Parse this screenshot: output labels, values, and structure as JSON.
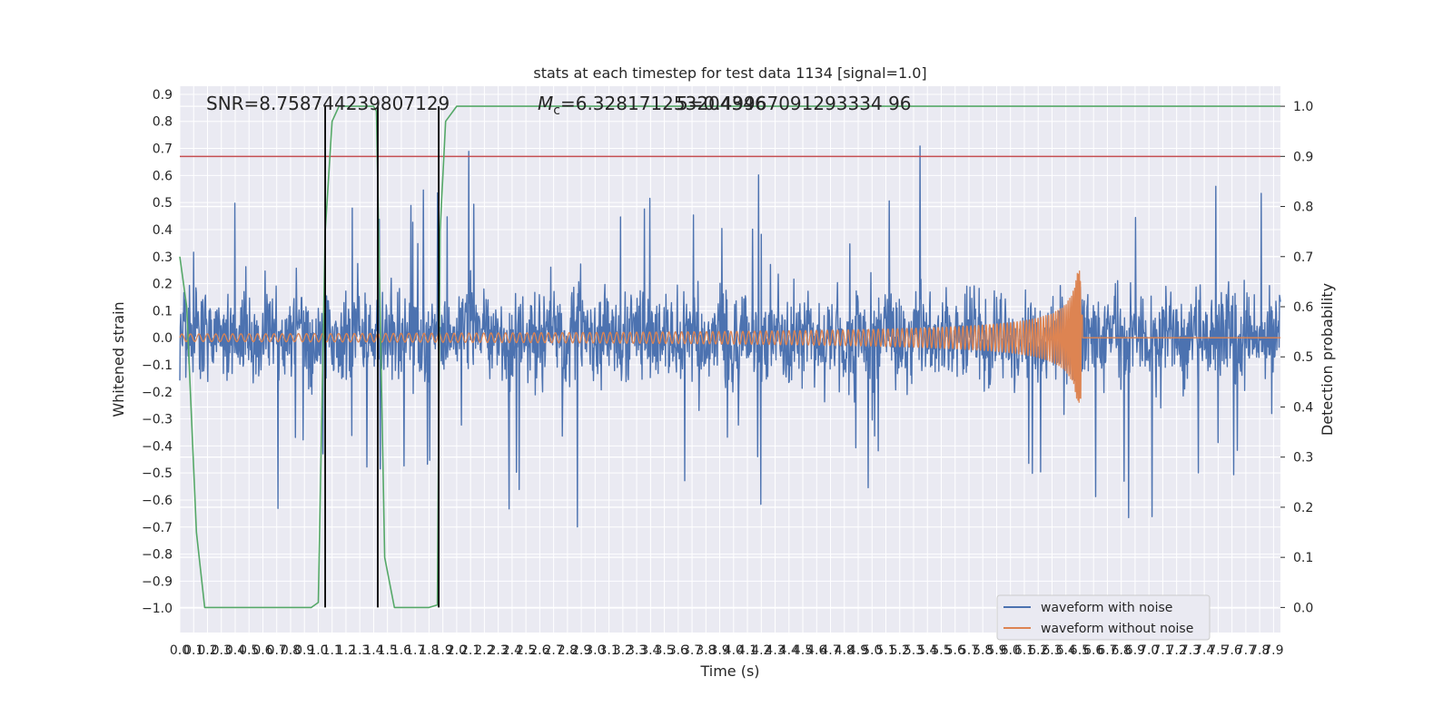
{
  "chart_data": {
    "type": "line",
    "title": "stats at each timestep for test data 1134 [signal=1.0]",
    "xlabel": "Time (s)",
    "ylabel": "Whitened strain",
    "y2label": "Detection probability",
    "xlim": [
      0.0,
      7.95
    ],
    "ylim": [
      -1.09,
      0.93
    ],
    "y2lim": [
      -0.05,
      1.04
    ],
    "x_ticks": [
      "0.0",
      "0.1",
      "0.2",
      "0.3",
      "0.4",
      "0.5",
      "0.6",
      "0.7",
      "0.8",
      "0.9",
      "1.0",
      "1.1",
      "1.2",
      "1.3",
      "1.4",
      "1.5",
      "1.6",
      "1.7",
      "1.8",
      "1.9",
      "2.0",
      "2.1",
      "2.2",
      "2.3",
      "2.4",
      "2.5",
      "2.6",
      "2.7",
      "2.8",
      "2.9",
      "3.0",
      "3.1",
      "3.2",
      "3.3",
      "3.4",
      "3.5",
      "3.6",
      "3.7",
      "3.8",
      "3.9",
      "4.0",
      "4.1",
      "4.2",
      "4.3",
      "4.4",
      "4.5",
      "4.6",
      "4.7",
      "4.8",
      "4.9",
      "5.0",
      "5.1",
      "5.2",
      "5.3",
      "5.4",
      "5.5",
      "5.6",
      "5.7",
      "5.8",
      "5.9",
      "6.0",
      "6.1",
      "6.2",
      "6.3",
      "6.4",
      "6.5",
      "6.6",
      "6.7",
      "6.8",
      "6.9",
      "7.0",
      "7.1",
      "7.2",
      "7.3",
      "7.4",
      "7.5",
      "7.6",
      "7.7",
      "7.8",
      "7.9"
    ],
    "y_ticks": [
      "0.9",
      "0.8",
      "0.7",
      "0.6",
      "0.5",
      "0.4",
      "0.3",
      "0.2",
      "0.1",
      "0.0",
      "-0.1",
      "-0.2",
      "-0.3",
      "-0.4",
      "-0.5",
      "-0.6",
      "-0.7",
      "-0.8",
      "-0.9",
      "-1.0"
    ],
    "y2_ticks": [
      "1.0",
      "0.9",
      "0.8",
      "0.7",
      "0.6",
      "0.5",
      "0.4",
      "0.3",
      "0.2",
      "0.1",
      "0.0"
    ],
    "annotations": {
      "snr": "SNR=8.758744239807129",
      "mc_prefix": "M",
      "mc_sub": "c",
      "mc_value": "=6.328171253204346",
      "overlap_value": "5=0.49967091293334 96"
    },
    "threshold": 0.9,
    "vlines_x": [
      1.05,
      1.43,
      1.87
    ],
    "series": [
      {
        "name": "waveform with noise",
        "color": "#4c72b0",
        "envelope": {
          "upper": 0.3,
          "lower": -0.3,
          "peak_upper": 0.83,
          "peak_lower": -1.0
        }
      },
      {
        "name": "waveform without noise",
        "color": "#dd8452",
        "merger_time": 6.52,
        "amplitude_start": 0.014,
        "amplitude_merger": 0.25
      },
      {
        "name": "",
        "axis": "y2",
        "color": "#55a868",
        "x": [
          0.0,
          0.05,
          0.12,
          0.18,
          0.3,
          0.6,
          0.9,
          0.95,
          1.0,
          1.05,
          1.1,
          1.15,
          1.2,
          1.3,
          1.4,
          1.42,
          1.48,
          1.55,
          1.65,
          1.8,
          1.86,
          1.88,
          1.92,
          2.0,
          7.95
        ],
        "values": [
          0.7,
          0.6,
          0.15,
          0.0,
          0.0,
          0.0,
          0.0,
          0.0,
          0.01,
          0.75,
          0.97,
          1.0,
          1.0,
          1.0,
          1.0,
          0.99,
          0.1,
          0.0,
          0.0,
          0.0,
          0.005,
          0.75,
          0.97,
          1.0,
          1.0
        ]
      }
    ],
    "threshold_color": "#c44e52",
    "legend": {
      "placement": "lower-right",
      "entries": [
        "waveform with noise",
        "waveform without noise"
      ]
    },
    "grid": true
  }
}
